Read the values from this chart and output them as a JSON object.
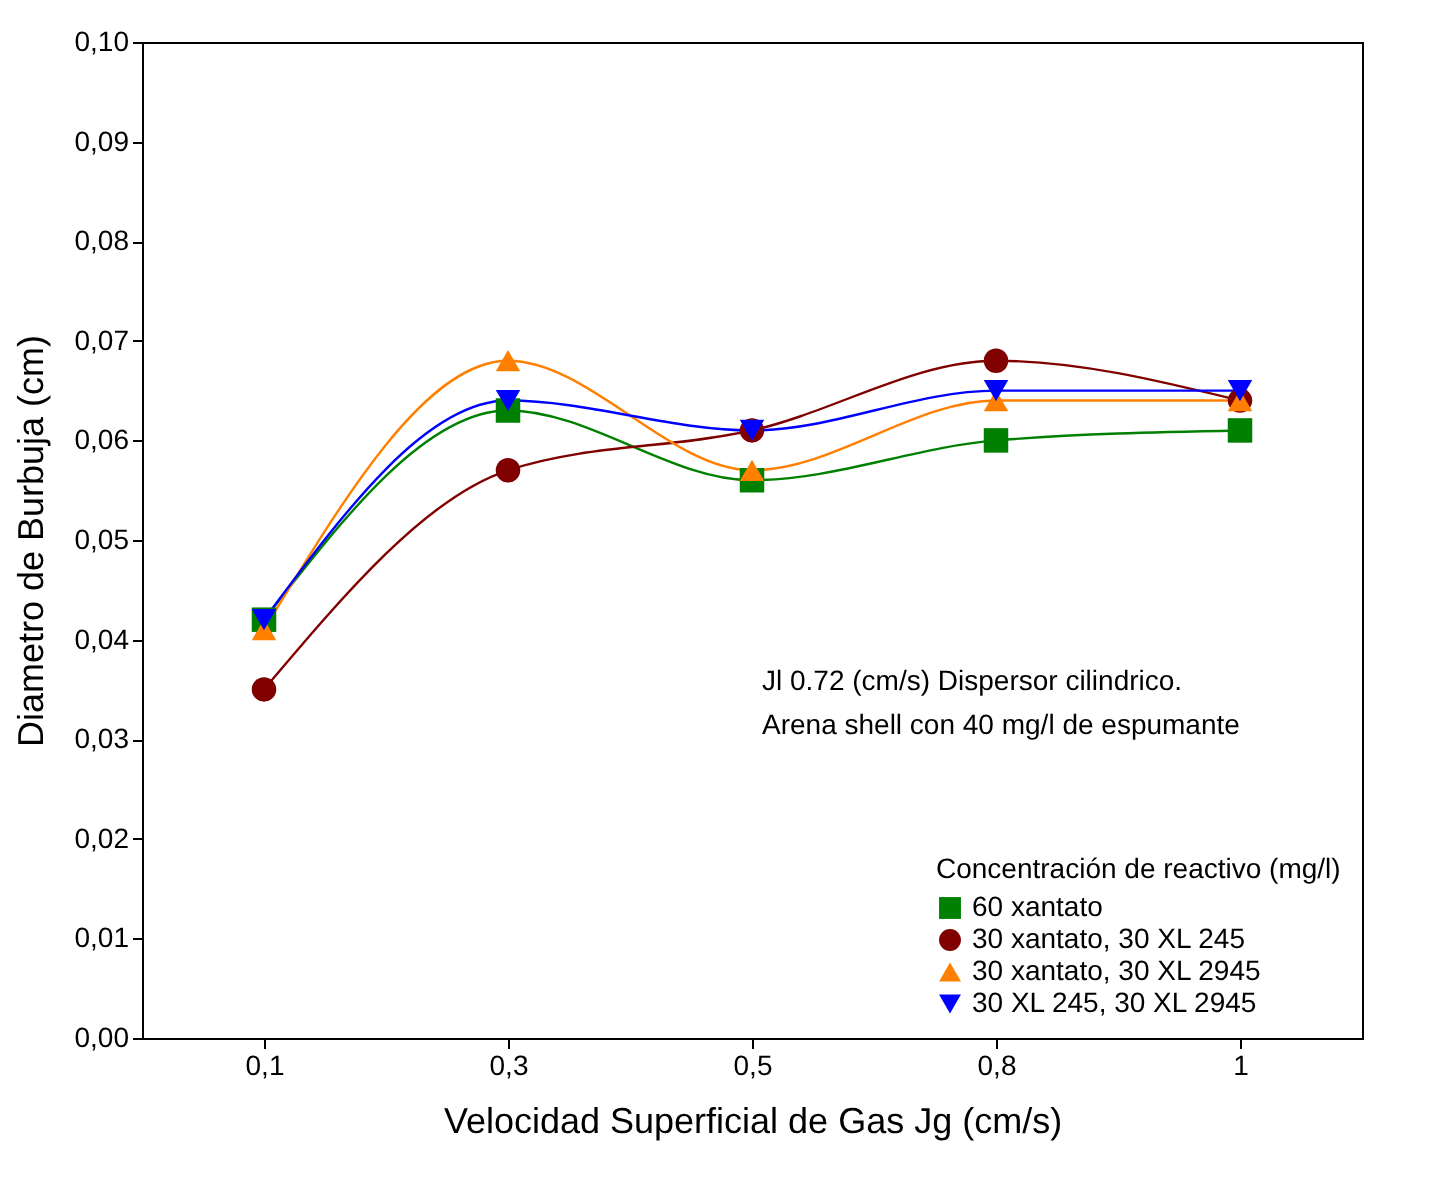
{
  "chart_data": {
    "type": "line",
    "xlabel": "Velocidad Superficial de Gas Jg (cm/s)",
    "ylabel": "Diametro de Burbuja (cm)",
    "legend_title": "Concentración de reactivo (mg/l)",
    "annotations": [
      "Jl 0.72 (cm/s) Dispersor cilindrico.",
      "Arena shell con 40 mg/l de espumante"
    ],
    "categories": [
      "0,1",
      "0,3",
      "0,5",
      "0,8",
      "1"
    ],
    "ylim": [
      0,
      0.1
    ],
    "yticks": [
      {
        "value": 0,
        "label": "0,00"
      },
      {
        "value": 0.01,
        "label": "0,01"
      },
      {
        "value": 0.02,
        "label": "0,02"
      },
      {
        "value": 0.03,
        "label": "0,03"
      },
      {
        "value": 0.04,
        "label": "0,04"
      },
      {
        "value": 0.05,
        "label": "0,05"
      },
      {
        "value": 0.06,
        "label": "0,06"
      },
      {
        "value": 0.07,
        "label": "0,07"
      },
      {
        "value": 0.08,
        "label": "0,08"
      },
      {
        "value": 0.09,
        "label": "0,09"
      },
      {
        "value": 0.1,
        "label": "0,10"
      }
    ],
    "grid": false,
    "legend": "bottom right",
    "line_style": "solid",
    "series": [
      {
        "name": "60 xantato",
        "color": "#008000",
        "marker": "square",
        "values": [
          0.042,
          0.063,
          0.056,
          0.06,
          0.061
        ]
      },
      {
        "name": "30 xantato, 30 XL 245",
        "color": "#800000",
        "marker": "circle",
        "values": [
          0.035,
          0.057,
          0.061,
          0.068,
          0.064
        ]
      },
      {
        "name": "30 xantato, 30 XL 2945",
        "color": "#ff8000",
        "marker": "triangle",
        "values": [
          0.041,
          0.068,
          0.057,
          0.064,
          0.064
        ]
      },
      {
        "name": "30 XL 245, 30 XL 2945",
        "color": "#0000ff",
        "marker": "triangle-down",
        "values": [
          0.042,
          0.064,
          0.061,
          0.065,
          0.065
        ]
      }
    ]
  }
}
